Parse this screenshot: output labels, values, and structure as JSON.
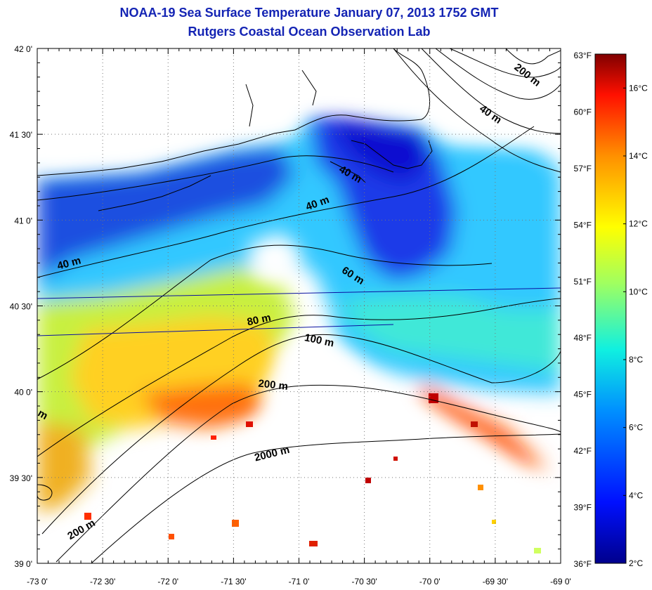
{
  "header": {
    "title": "NOAA-19 Sea Surface Temperature January 07, 2013 1752 GMT",
    "subtitle": "Rutgers Coastal Ocean Observation Lab"
  },
  "colors": {
    "title": "#1424b4",
    "scale": [
      "#00008c",
      "#0010ff",
      "#0090ff",
      "#10f0e0",
      "#a0ff60",
      "#ffff00",
      "#ff9000",
      "#ff1000",
      "#800000"
    ]
  },
  "map": {
    "lon_range": [
      -73,
      -69
    ],
    "lat_range": [
      39,
      42
    ],
    "lon_ticks": [
      {
        "value": -73,
        "label": "-73 0'"
      },
      {
        "value": -72.5,
        "label": "-72 30'"
      },
      {
        "value": -72,
        "label": "-72 0'"
      },
      {
        "value": -71.5,
        "label": "-71 30'"
      },
      {
        "value": -71,
        "label": "-71 0'"
      },
      {
        "value": -70.5,
        "label": "-70 30'"
      },
      {
        "value": -70,
        "label": "-70 0'"
      },
      {
        "value": -69.5,
        "label": "-69 30'"
      },
      {
        "value": -69,
        "label": "-69 0'"
      }
    ],
    "lat_ticks": [
      {
        "value": 42,
        "label": "42 0'"
      },
      {
        "value": 41.5,
        "label": "41 30'"
      },
      {
        "value": 41,
        "label": "41 0'"
      },
      {
        "value": 40.5,
        "label": "40 30'"
      },
      {
        "value": 40,
        "label": "40 0'"
      },
      {
        "value": 39.5,
        "label": "39 30'"
      },
      {
        "value": 39,
        "label": "39 0'"
      }
    ],
    "fahrenheit_ticks": [
      "63°F",
      "60°F",
      "57°F",
      "54°F",
      "51°F",
      "48°F",
      "45°F",
      "42°F",
      "39°F",
      "36°F"
    ],
    "contour_labels": [
      {
        "text": "200 m",
        "lon": -69.27,
        "lat": 41.83,
        "rot": 38
      },
      {
        "text": "40 m",
        "lon": -69.55,
        "lat": 41.6,
        "rot": 35
      },
      {
        "text": "40 m",
        "lon": -70.62,
        "lat": 41.25,
        "rot": 30
      },
      {
        "text": "40 m",
        "lon": -70.85,
        "lat": 41.08,
        "rot": -20
      },
      {
        "text": "40 m",
        "lon": -72.75,
        "lat": 40.73,
        "rot": -15
      },
      {
        "text": "60 m",
        "lon": -70.6,
        "lat": 40.66,
        "rot": 32
      },
      {
        "text": "80 m",
        "lon": -71.3,
        "lat": 40.4,
        "rot": -12
      },
      {
        "text": "100 m",
        "lon": -70.85,
        "lat": 40.28,
        "rot": 12
      },
      {
        "text": "200 m",
        "lon": -71.2,
        "lat": 40.02,
        "rot": 6
      },
      {
        "text": "2000 m",
        "lon": -71.2,
        "lat": 39.62,
        "rot": -14
      },
      {
        "text": "200 m",
        "lon": -72.65,
        "lat": 39.18,
        "rot": -30
      },
      {
        "text": "m",
        "lon": -72.97,
        "lat": 39.85,
        "rot": 30
      }
    ]
  },
  "colorbar": {
    "min_c": 2,
    "max_c": 17,
    "ticks": [
      {
        "value": 16,
        "label": "16°C"
      },
      {
        "value": 14,
        "label": "14°C"
      },
      {
        "value": 12,
        "label": "12°C"
      },
      {
        "value": 10,
        "label": "10°C"
      },
      {
        "value": 8,
        "label": "8°C"
      },
      {
        "value": 6,
        "label": "6°C"
      },
      {
        "value": 4,
        "label": "4°C"
      },
      {
        "value": 2,
        "label": "2°C"
      }
    ]
  }
}
